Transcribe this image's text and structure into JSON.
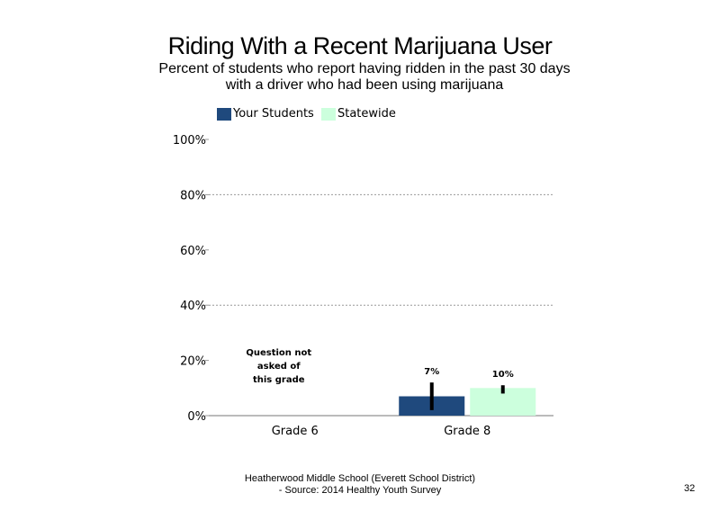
{
  "title": "Riding With a Recent Marijuana User",
  "subtitle_line1": "Percent of students who report having ridden in the past 30 days",
  "subtitle_line2": "with a driver who had been using marijuana",
  "footer_line1": "Heatherwood Middle School (Everett School District)",
  "footer_line2": "- Source: 2014 Healthy Youth Survey",
  "page_number": "32",
  "chart_data": {
    "type": "bar",
    "categories": [
      "Grade 6",
      "Grade 8"
    ],
    "series": [
      {
        "name": "Your Students",
        "color": "#1f497d",
        "values": [
          null,
          7
        ],
        "labels": [
          "",
          "7%"
        ],
        "error": [
          null,
          [
            2,
            12
          ]
        ]
      },
      {
        "name": "Statewide",
        "color": "#ccffdd",
        "values": [
          null,
          10
        ],
        "labels": [
          "",
          "10%"
        ],
        "error": [
          null,
          [
            8,
            11
          ]
        ]
      }
    ],
    "y_ticks": [
      "0%",
      "20%",
      "40%",
      "60%",
      "80%",
      "100%"
    ],
    "ylim": [
      0,
      100
    ],
    "grid": "dotted",
    "legend_position": "top",
    "annotation": [
      "Question not",
      "asked of",
      "this grade"
    ]
  }
}
